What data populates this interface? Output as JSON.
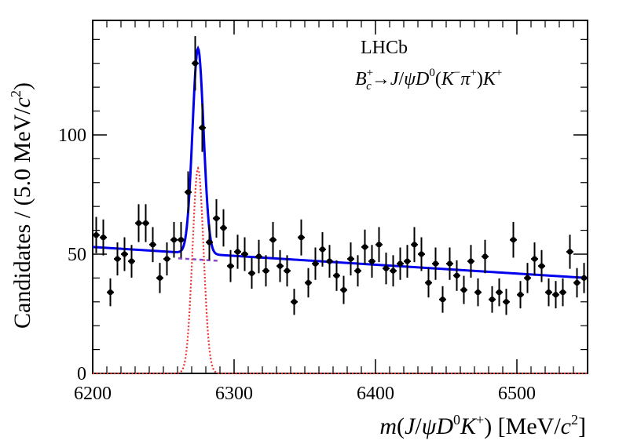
{
  "chart_data": {
    "type": "scatter",
    "experiment_label": "LHCb",
    "decay_label": {
      "B": "B",
      "sub_c": "c",
      "sup_plus": "+",
      "arrow": "→",
      "J": "J",
      "slash": "/",
      "psi": "ψ",
      "D": "D",
      "sup_0": "0",
      "lparen": "(",
      "K": "K",
      "sup_minus": "−",
      "pi": "π",
      "sup_plus2": "+",
      "rparen": ")",
      "K2": "K",
      "sup_plus3": "+"
    },
    "y_title": {
      "prefix": "Candidates / (5.0 MeV/",
      "c": "c",
      "exp": "2",
      "suffix": ")"
    },
    "x_title": {
      "m": "m",
      "open": "(",
      "J": "J",
      "slash": "/",
      "psi": "ψ",
      "D": "D",
      "sup0": "0",
      "K": "K",
      "supplus": "+",
      "close": ") [MeV/",
      "c": "c",
      "exp": "2",
      "end": "]"
    },
    "x_ticks": [
      6200,
      6300,
      6400,
      6500
    ],
    "y_ticks": [
      0,
      50,
      100
    ],
    "xlim": [
      6200,
      6550
    ],
    "ylim": [
      0,
      148
    ],
    "bin_width": 5,
    "points": {
      "x": [
        6202.5,
        6207.5,
        6212.5,
        6217.5,
        6222.5,
        6227.5,
        6232.5,
        6237.5,
        6242.5,
        6247.5,
        6252.5,
        6257.5,
        6262.5,
        6267.5,
        6272.5,
        6277.5,
        6282.5,
        6287.5,
        6292.5,
        6297.5,
        6302.5,
        6307.5,
        6312.5,
        6317.5,
        6322.5,
        6327.5,
        6332.5,
        6337.5,
        6342.5,
        6347.5,
        6352.5,
        6357.5,
        6362.5,
        6367.5,
        6372.5,
        6377.5,
        6382.5,
        6387.5,
        6392.5,
        6397.5,
        6402.5,
        6407.5,
        6412.5,
        6417.5,
        6422.5,
        6427.5,
        6432.5,
        6437.5,
        6442.5,
        6447.5,
        6452.5,
        6457.5,
        6462.5,
        6467.5,
        6472.5,
        6477.5,
        6482.5,
        6487.5,
        6492.5,
        6497.5,
        6502.5,
        6507.5,
        6512.5,
        6517.5,
        6522.5,
        6527.5,
        6532.5,
        6537.5,
        6542.5,
        6547.5
      ],
      "y": [
        58,
        57,
        34,
        48,
        50,
        47,
        63,
        63,
        54,
        40,
        48,
        56,
        56,
        76,
        130,
        103,
        55,
        65,
        61,
        45,
        51,
        50,
        42,
        49,
        43,
        56,
        45,
        43,
        30,
        57,
        38,
        46,
        52,
        47,
        41,
        35,
        48,
        43,
        53,
        47,
        54,
        44,
        43,
        46,
        47,
        54,
        50,
        38,
        46,
        31,
        46,
        41,
        35,
        47,
        34,
        49,
        31,
        34,
        30,
        56,
        33,
        40,
        48,
        45,
        34,
        33,
        34,
        51,
        38,
        40
      ]
    },
    "series": [
      {
        "name": "Total fit",
        "color": "#0000ee",
        "style": "solid"
      },
      {
        "name": "Signal",
        "color": "#ee3333",
        "style": "dotted"
      },
      {
        "name": "Background",
        "color": "#8844cc",
        "style": "dashed"
      }
    ],
    "fit_model": {
      "bkg_slope_a": 53,
      "bkg_slope_b": 40,
      "signal_mean": 6274.5,
      "signal_sigma": 3.9,
      "signal_peak": 86,
      "total_peak_extra": 0
    },
    "marker_color": "#000000"
  }
}
